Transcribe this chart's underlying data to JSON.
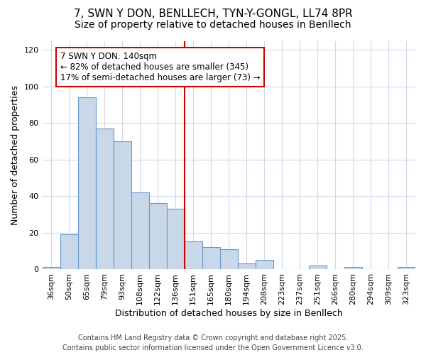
{
  "title": "7, SWN Y DON, BENLLECH, TYN-Y-GONGL, LL74 8PR",
  "subtitle": "Size of property relative to detached houses in Benllech",
  "xlabel": "Distribution of detached houses by size in Benllech",
  "ylabel": "Number of detached properties",
  "categories": [
    "36sqm",
    "50sqm",
    "65sqm",
    "79sqm",
    "93sqm",
    "108sqm",
    "122sqm",
    "136sqm",
    "151sqm",
    "165sqm",
    "180sqm",
    "194sqm",
    "208sqm",
    "223sqm",
    "237sqm",
    "251sqm",
    "266sqm",
    "280sqm",
    "294sqm",
    "309sqm",
    "323sqm"
  ],
  "values": [
    1,
    19,
    94,
    77,
    70,
    42,
    36,
    33,
    15,
    12,
    11,
    3,
    5,
    0,
    0,
    2,
    0,
    1,
    0,
    0,
    1
  ],
  "bar_color": "#c8d8e8",
  "bar_edge_color": "#6699cc",
  "vline_x_index": 7,
  "vline_color": "#cc0000",
  "annotation_line1": "7 SWN Y DON: 140sqm",
  "annotation_line2": "← 82% of detached houses are smaller (345)",
  "annotation_line3": "17% of semi-detached houses are larger (73) →",
  "annotation_box_color": "#ffffff",
  "annotation_box_edge_color": "#cc0000",
  "ylim": [
    0,
    125
  ],
  "yticks": [
    0,
    20,
    40,
    60,
    80,
    100,
    120
  ],
  "footer_line1": "Contains HM Land Registry data © Crown copyright and database right 2025.",
  "footer_line2": "Contains public sector information licensed under the Open Government Licence v3.0.",
  "background_color": "#ffffff",
  "grid_color": "#d0d8e8",
  "title_fontsize": 11,
  "subtitle_fontsize": 10,
  "axis_label_fontsize": 9,
  "tick_fontsize": 8,
  "annotation_fontsize": 8.5,
  "footer_fontsize": 7
}
